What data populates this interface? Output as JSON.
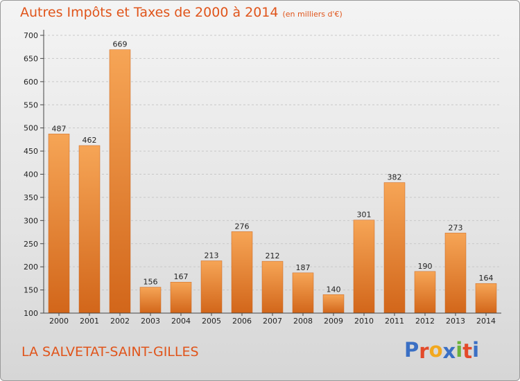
{
  "chart_data": {
    "type": "bar",
    "title": "Autres Impôts et Taxes de 2000 à 2014",
    "subtitle": "(en milliers d'€)",
    "categories": [
      "2000",
      "2001",
      "2002",
      "2003",
      "2004",
      "2005",
      "2006",
      "2007",
      "2008",
      "2009",
      "2010",
      "2011",
      "2012",
      "2013",
      "2014"
    ],
    "values": [
      487,
      462,
      669,
      156,
      167,
      213,
      276,
      212,
      187,
      140,
      301,
      382,
      190,
      273,
      164
    ],
    "ylim": [
      100,
      700
    ],
    "yticks": [
      100,
      150,
      200,
      250,
      300,
      350,
      400,
      450,
      500,
      550,
      600,
      650,
      700
    ],
    "grid": true,
    "bar_color": "#f0913a",
    "bar_color_dark": "#d96b1a"
  },
  "footer": {
    "commune": "LA SALVETAT-SAINT-GILLES",
    "logo_letters": [
      "P",
      "r",
      "o",
      "x",
      "i",
      "t",
      "i"
    ],
    "logo_colors": [
      "#3a6fc4",
      "#e34a2a",
      "#f2a81e",
      "#3a6fc4",
      "#6bb23a",
      "#e34a2a",
      "#3a6fc4"
    ]
  }
}
